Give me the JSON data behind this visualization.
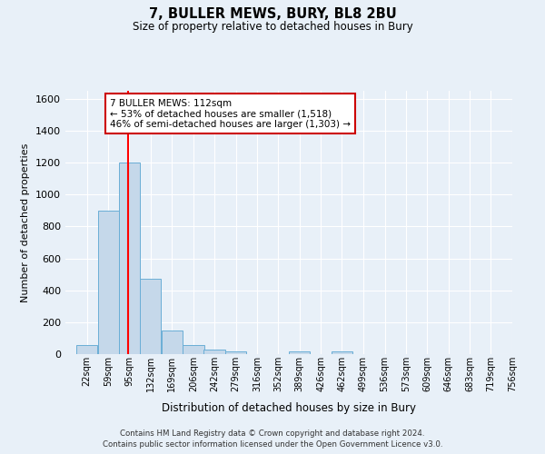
{
  "title": "7, BULLER MEWS, BURY, BL8 2BU",
  "subtitle": "Size of property relative to detached houses in Bury",
  "xlabel": "Distribution of detached houses by size in Bury",
  "ylabel": "Number of detached properties",
  "bin_labels": [
    "22sqm",
    "59sqm",
    "95sqm",
    "132sqm",
    "169sqm",
    "206sqm",
    "242sqm",
    "279sqm",
    "316sqm",
    "352sqm",
    "389sqm",
    "426sqm",
    "462sqm",
    "499sqm",
    "536sqm",
    "573sqm",
    "609sqm",
    "646sqm",
    "683sqm",
    "719sqm",
    "756sqm"
  ],
  "bin_edges": [
    22,
    59,
    95,
    132,
    169,
    206,
    242,
    279,
    316,
    352,
    389,
    426,
    462,
    499,
    536,
    573,
    609,
    646,
    683,
    719,
    756
  ],
  "bar_heights": [
    55,
    900,
    1200,
    470,
    150,
    58,
    28,
    15,
    0,
    0,
    15,
    0,
    15,
    0,
    0,
    0,
    0,
    0,
    0,
    0
  ],
  "bar_color": "#c5d8ea",
  "bar_edge_color": "#6aaed6",
  "bg_color": "#e8f0f8",
  "grid_color": "#ffffff",
  "red_line_x": 112,
  "ylim": [
    0,
    1650
  ],
  "yticks": [
    0,
    200,
    400,
    600,
    800,
    1000,
    1200,
    1400,
    1600
  ],
  "annotation_title": "7 BULLER MEWS: 112sqm",
  "annotation_line1": "← 53% of detached houses are smaller (1,518)",
  "annotation_line2": "46% of semi-detached houses are larger (1,303) →",
  "annotation_box_color": "#ffffff",
  "annotation_box_edge": "#cc0000",
  "footer_line1": "Contains HM Land Registry data © Crown copyright and database right 2024.",
  "footer_line2": "Contains public sector information licensed under the Open Government Licence v3.0."
}
